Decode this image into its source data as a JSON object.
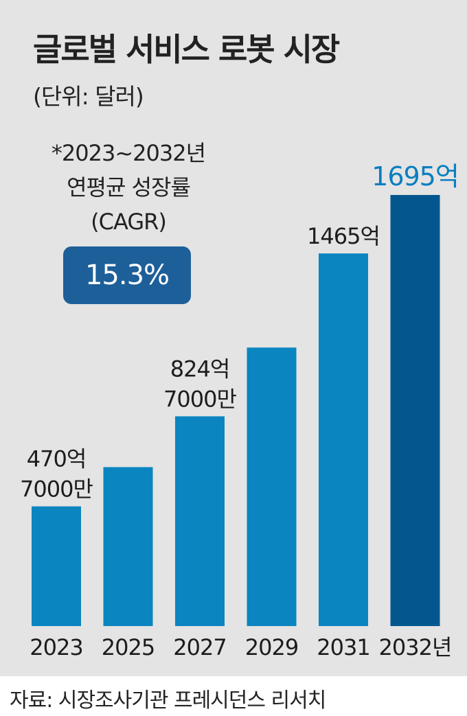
{
  "title": "글로벌 서비스 로봇 시장",
  "unit": "(단위: 달러)",
  "cagr": {
    "lines": [
      "*2023~2032년",
      "연평균 성장률",
      "(CAGR)"
    ],
    "value": "15.3%"
  },
  "source": "자료: 시장조사기관 프레시던스 리서치",
  "colors": {
    "bar": "#0a85c0",
    "bar_highlight": "#03578e",
    "highlight_label": "#0a7ec0",
    "badge": "#1d5f99",
    "panel": "#e4e4e4"
  },
  "chart_data": {
    "type": "bar",
    "unit": "달러",
    "categories": [
      "2023",
      "2025",
      "2027",
      "2029",
      "2031",
      "2032년"
    ],
    "values": [
      470.7,
      625,
      824.7,
      1095,
      1465,
      1695
    ],
    "value_labels": [
      [
        "470억",
        "7000만"
      ],
      [],
      [
        "824억",
        "7000만"
      ],
      [],
      [
        "1465억"
      ],
      [
        "1695억"
      ]
    ],
    "highlight_index": 5,
    "ylim": [
      0,
      1695
    ],
    "grid": false,
    "legend": "none"
  }
}
